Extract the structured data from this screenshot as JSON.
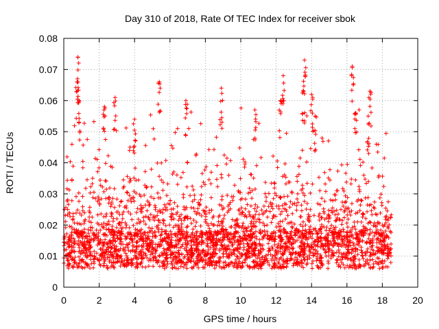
{
  "chart_data": {
    "type": "scatter",
    "title": "Day 310 of 2018, Rate Of TEC Index for receiver sbok",
    "xlabel": "GPS time / hours",
    "ylabel": "ROTI / TECUs",
    "xlim": [
      0,
      20
    ],
    "ylim": [
      0,
      0.08
    ],
    "x_ticks": [
      "0",
      "2",
      "4",
      "6",
      "8",
      "10",
      "12",
      "14",
      "16",
      "18",
      "20"
    ],
    "y_ticks": [
      "0",
      "0.01",
      "0.02",
      "0.03",
      "0.04",
      "0.05",
      "0.06",
      "0.07",
      "0.08"
    ],
    "grid": true,
    "marker": "+",
    "marker_color": "#ff0000",
    "data_range_hours": [
      0,
      18.5
    ],
    "baseline_roti": 0.012,
    "series": [
      {
        "name": "ROTI",
        "peaks": [
          {
            "x": 0.8,
            "y": 0.074
          },
          {
            "x": 0.75,
            "y": 0.066
          },
          {
            "x": 0.85,
            "y": 0.06
          },
          {
            "x": 2.3,
            "y": 0.058
          },
          {
            "x": 2.9,
            "y": 0.061
          },
          {
            "x": 4.0,
            "y": 0.054
          },
          {
            "x": 5.4,
            "y": 0.066
          },
          {
            "x": 6.9,
            "y": 0.06
          },
          {
            "x": 8.9,
            "y": 0.064
          },
          {
            "x": 10.8,
            "y": 0.057
          },
          {
            "x": 12.4,
            "y": 0.068
          },
          {
            "x": 12.25,
            "y": 0.06
          },
          {
            "x": 13.6,
            "y": 0.073
          },
          {
            "x": 13.55,
            "y": 0.063
          },
          {
            "x": 14.0,
            "y": 0.062
          },
          {
            "x": 14.2,
            "y": 0.055
          },
          {
            "x": 16.3,
            "y": 0.071
          },
          {
            "x": 16.5,
            "y": 0.056
          },
          {
            "x": 17.3,
            "y": 0.063
          },
          {
            "x": 17.2,
            "y": 0.055
          }
        ]
      }
    ]
  }
}
